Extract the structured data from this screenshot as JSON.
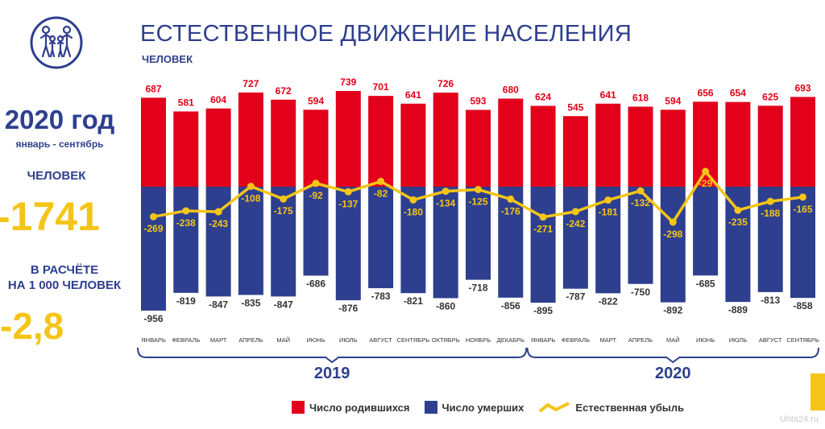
{
  "header": {
    "title": "ЕСТЕСТВЕННОЕ ДВИЖЕНИЕ НАСЕЛЕНИЯ",
    "subtitle": "ЧЕЛОВЕК"
  },
  "summary": {
    "year": "2020 год",
    "period": "январь - сентябрь",
    "persons_label": "ЧЕЛОВЕК",
    "total": "-1741",
    "per1000_line1": "В РАСЧЁТЕ",
    "per1000_line2": "НА 1 000 ЧЕЛОВЕК",
    "rate": "-2,8"
  },
  "colors": {
    "births": "#e2001a",
    "deaths": "#2e3f8f",
    "line": "#f4c518",
    "text_dark": "#2e3f8f"
  },
  "chart_data": {
    "type": "bar",
    "categories": [
      "ЯНВАРЬ",
      "ФЕВРАЛЬ",
      "МАРТ",
      "АПРЕЛЬ",
      "МАЙ",
      "ИЮНЬ",
      "ИЮЛЬ",
      "АВГУСТ",
      "СЕНТЯБРЬ",
      "ОКТЯБРЬ",
      "НОЯБРЬ",
      "ДЕКАБРЬ",
      "ЯНВАРЬ",
      "ФЕВРАЛЬ",
      "МАРТ",
      "АПРЕЛЬ",
      "МАЙ",
      "ИЮНЬ",
      "ИЮЛЬ",
      "АВГУСТ",
      "СЕНТЯБРЬ"
    ],
    "groups": [
      {
        "label": "2019",
        "count": 12
      },
      {
        "label": "2020",
        "count": 9
      }
    ],
    "series": [
      {
        "name": "Число родившихся",
        "type": "bar",
        "values": [
          687,
          581,
          604,
          727,
          672,
          594,
          739,
          701,
          641,
          726,
          593,
          680,
          624,
          545,
          641,
          618,
          594,
          656,
          654,
          625,
          693
        ]
      },
      {
        "name": "Число умерших",
        "type": "bar",
        "values": [
          -956,
          -819,
          -847,
          -835,
          -847,
          -686,
          -876,
          -783,
          -821,
          -860,
          -718,
          -856,
          -895,
          -787,
          -822,
          -750,
          -892,
          -685,
          -889,
          -813,
          -858
        ]
      },
      {
        "name": "Естественная убыль",
        "type": "line",
        "values": [
          -269,
          -238,
          -243,
          -108,
          -175,
          -92,
          -137,
          -82,
          -180,
          -134,
          -125,
          -176,
          -271,
          -242,
          -181,
          -132,
          -298,
          -29,
          -235,
          -188,
          -165
        ]
      }
    ]
  },
  "watermark": "Uhta24.ru"
}
